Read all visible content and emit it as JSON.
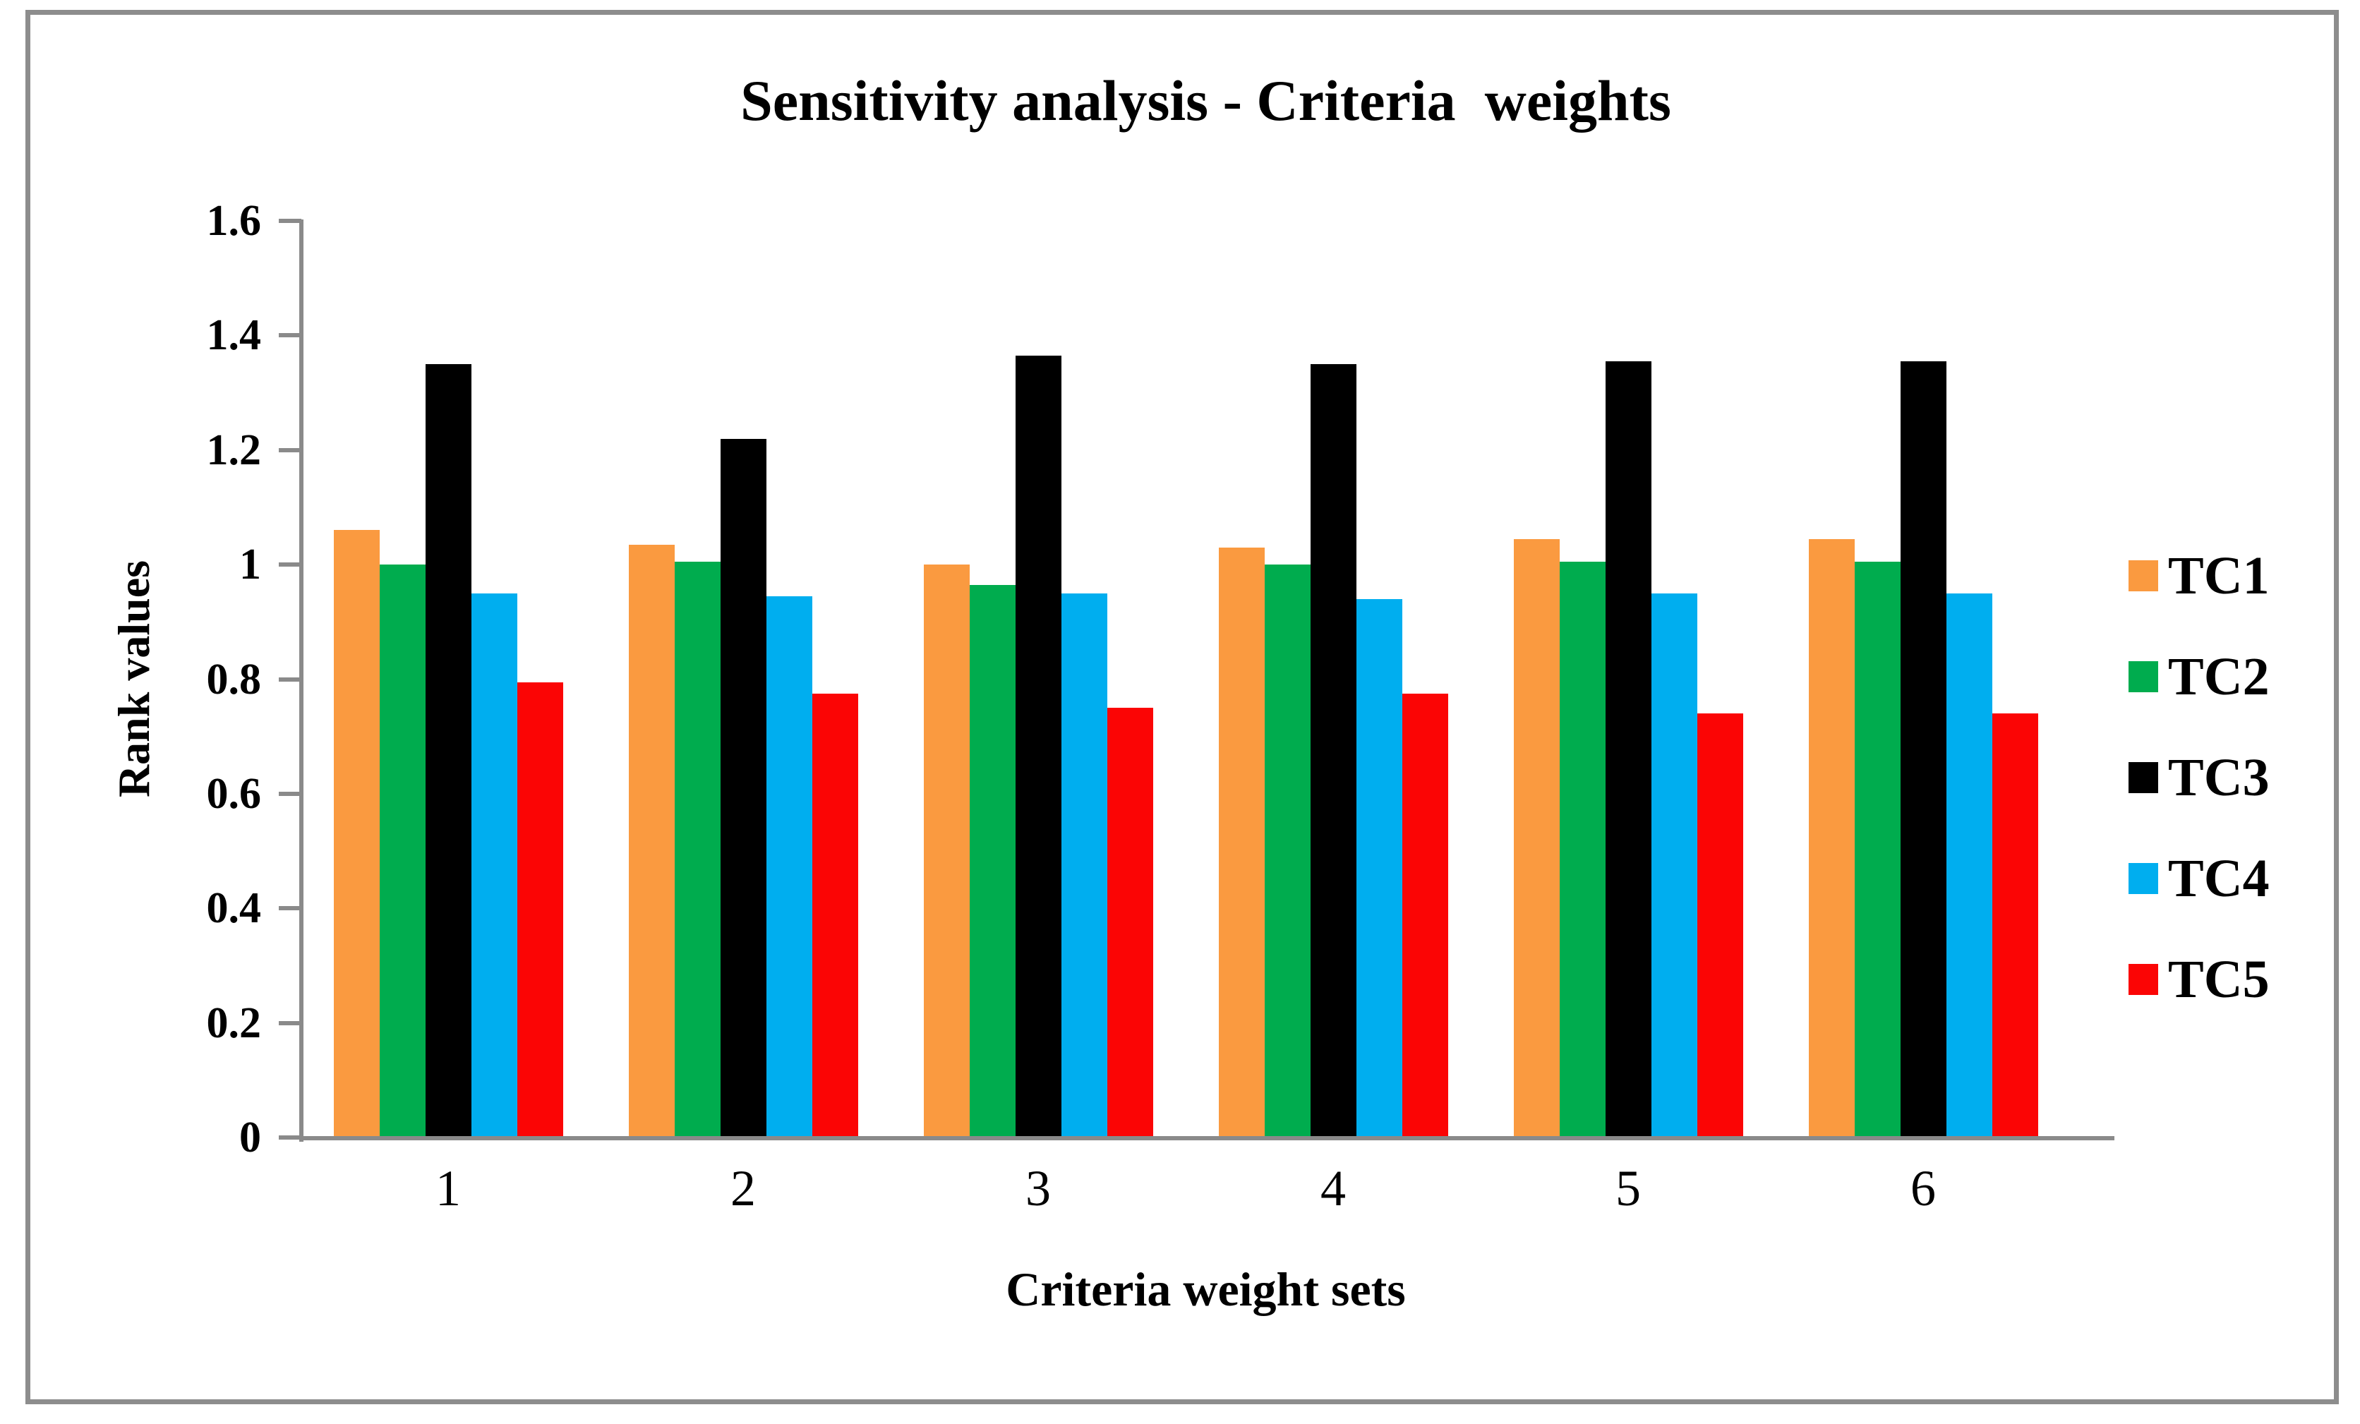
{
  "chart_data": {
    "type": "bar",
    "title": "Sensitivity analysis - Criteria  weights",
    "xlabel": "Criteria weight sets",
    "ylabel": "Rank values",
    "categories": [
      "1",
      "2",
      "3",
      "4",
      "5",
      "6"
    ],
    "ylim": [
      0,
      1.6
    ],
    "yticks": [
      {
        "label": "0",
        "value": 0
      },
      {
        "label": "0.2",
        "value": 0.2
      },
      {
        "label": "0.4",
        "value": 0.4
      },
      {
        "label": "0.6",
        "value": 0.6
      },
      {
        "label": "0.8",
        "value": 0.8
      },
      {
        "label": "1",
        "value": 1
      },
      {
        "label": "1.2",
        "value": 1.2
      },
      {
        "label": "1.4",
        "value": 1.4
      },
      {
        "label": "1.6",
        "value": 1.6
      }
    ],
    "grid": false,
    "legend_position": "right",
    "axis_color": "#8a8a8a",
    "border_color": "#8d8d8d",
    "series": [
      {
        "name": "TC1",
        "color": "#FA9A40",
        "values": [
          1.06,
          1.035,
          1.0,
          1.03,
          1.045,
          1.045
        ]
      },
      {
        "name": "TC2",
        "color": "#00AC4E",
        "values": [
          1.0,
          1.005,
          0.965,
          1.0,
          1.005,
          1.005
        ]
      },
      {
        "name": "TC3",
        "color": "#000000",
        "values": [
          1.35,
          1.22,
          1.365,
          1.35,
          1.355,
          1.355
        ]
      },
      {
        "name": "TC4",
        "color": "#00AEEF",
        "values": [
          0.95,
          0.945,
          0.95,
          0.94,
          0.95,
          0.95
        ]
      },
      {
        "name": "TC5",
        "color": "#FB0505",
        "values": [
          0.795,
          0.775,
          0.75,
          0.775,
          0.74,
          0.74
        ]
      }
    ]
  }
}
